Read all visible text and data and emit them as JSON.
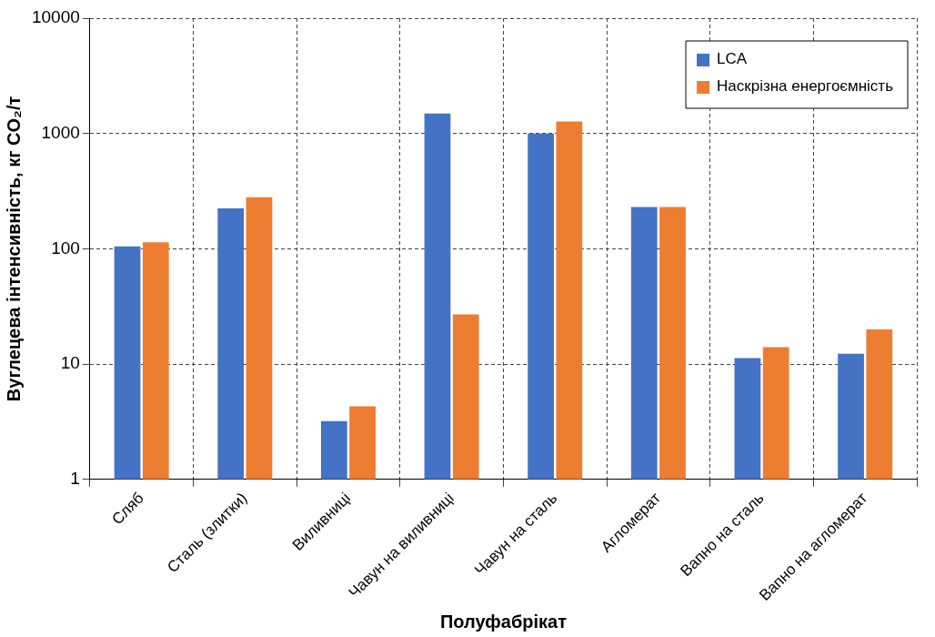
{
  "chart_data": {
    "type": "bar",
    "xlabel": "Полуфабрікат",
    "ylabel": "Вуглецева інтенсивність, кг CO₂/т",
    "categories": [
      "Сляб",
      "Сталь (злитки)",
      "Виливниці",
      "Чавун на виливниці",
      "Чавун на сталь",
      "Агломерат",
      "Вапно на сталь",
      "Вапно на агломерат"
    ],
    "series": [
      {
        "name": "LCA",
        "color": "#4472c4",
        "values": [
          105,
          224,
          3.2,
          1490,
          1000,
          230,
          11.3,
          12.3
        ]
      },
      {
        "name": "Наскрізна енергоємність",
        "color": "#ed7d31",
        "values": [
          114,
          280,
          4.3,
          27,
          1270,
          230,
          14,
          20
        ]
      }
    ],
    "log": "y",
    "ylim": [
      1,
      10000
    ],
    "yticks": [
      1,
      10,
      100,
      1000,
      10000
    ],
    "grid": true,
    "legend": "top right"
  }
}
